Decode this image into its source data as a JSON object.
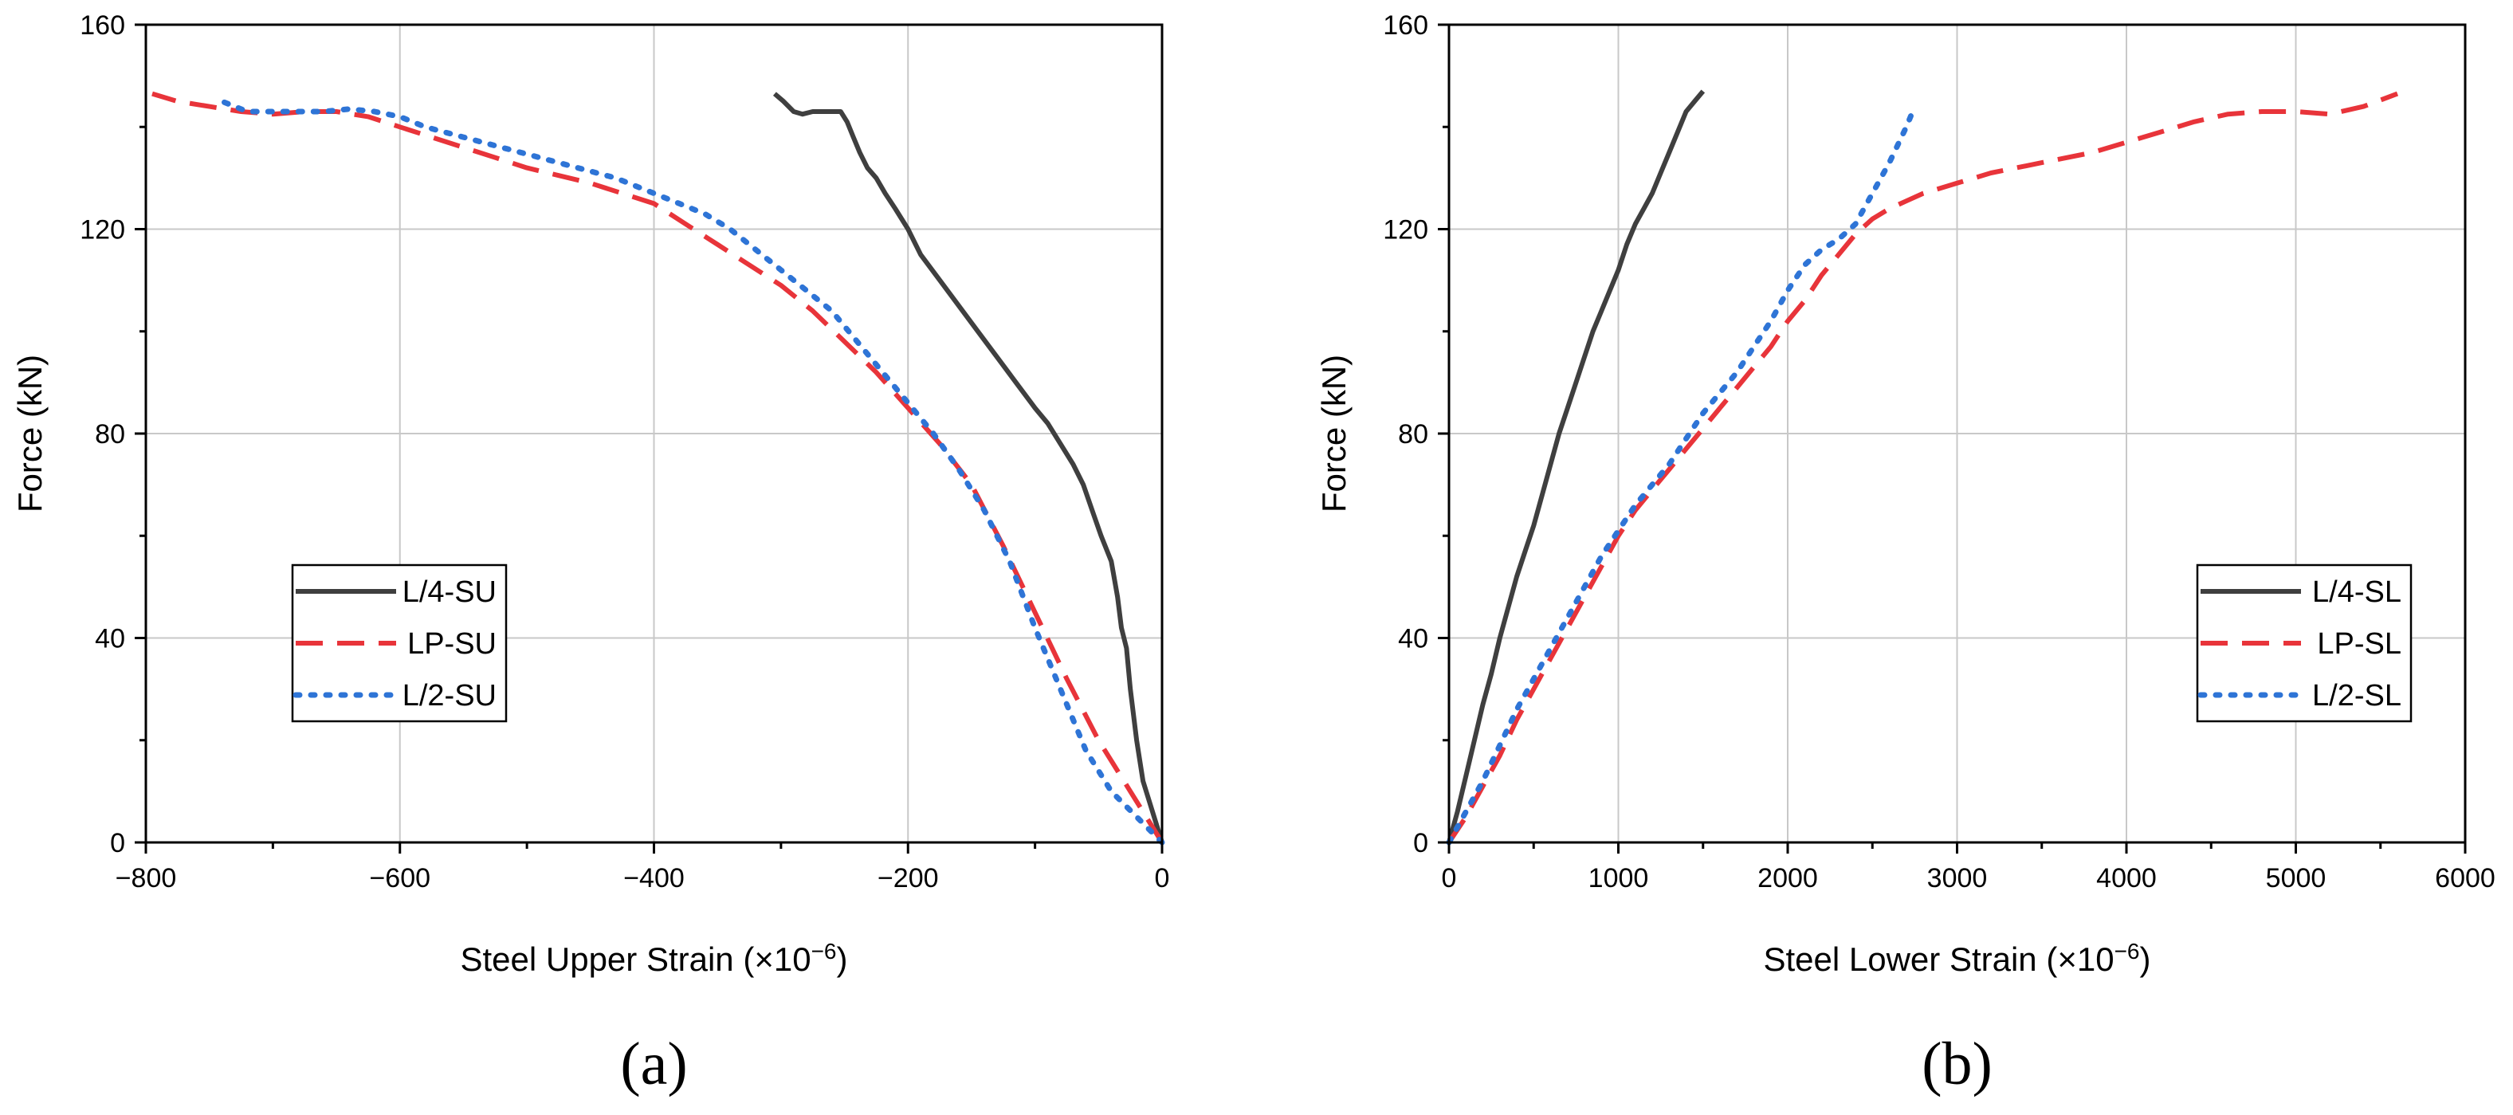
{
  "chart_data": [
    {
      "type": "line",
      "panel_label": "(a)",
      "xlabel": "Steel Upper Strain (×10",
      "xlabel_exp": "−6",
      "xlabel_close": ")",
      "ylabel": "Force (kN)",
      "xlim": [
        -800,
        0
      ],
      "ylim": [
        0,
        160
      ],
      "xticks": [
        -800,
        -600,
        -400,
        -200,
        0
      ],
      "xtick_labels": [
        "−800",
        "−600",
        "−400",
        "−200",
        "0"
      ],
      "yticks": [
        0,
        40,
        80,
        120,
        160
      ],
      "ytick_labels": [
        "0",
        "40",
        "80",
        "120",
        "160"
      ],
      "grid": true,
      "legend_position": "lower-left",
      "series": [
        {
          "name": "L/4-SU",
          "color": "#3f3f3f",
          "style": "solid",
          "x": [
            0,
            -5,
            -10,
            -15,
            -20,
            -25,
            -28,
            -32,
            -35,
            -40,
            -48,
            -55,
            -62,
            -70,
            -80,
            -90,
            -100,
            -115,
            -130,
            -145,
            -160,
            -175,
            -190,
            -200,
            -210,
            -218,
            -225,
            -232,
            -238,
            -243,
            -248,
            -253,
            -257,
            -262,
            -268,
            -275,
            -283,
            -290,
            -298,
            -305
          ],
          "y": [
            0,
            4,
            8,
            12,
            20,
            30,
            38,
            42,
            48,
            55,
            60,
            65,
            70,
            74,
            78,
            82,
            85,
            90,
            95,
            100,
            105,
            110,
            115,
            120,
            124,
            127,
            130,
            132,
            135,
            138,
            141,
            143,
            143,
            143,
            143,
            143,
            142.5,
            143,
            145,
            146.5
          ]
        },
        {
          "name": "LP-SU",
          "color": "#e8343a",
          "style": "dashed",
          "x": [
            0,
            -25,
            -50,
            -75,
            -100,
            -125,
            -150,
            -175,
            -200,
            -225,
            -250,
            -275,
            -300,
            -325,
            -350,
            -375,
            -400,
            -425,
            -450,
            -475,
            -500,
            -525,
            -550,
            -575,
            -600,
            -625,
            -650,
            -675,
            -700,
            -725,
            -750,
            -775,
            -795
          ],
          "y": [
            0,
            10,
            20,
            32,
            45,
            58,
            70,
            78,
            85,
            92,
            98,
            104,
            109,
            113,
            117,
            121,
            125,
            127,
            129,
            130.5,
            132,
            134,
            136,
            138,
            140,
            142,
            143,
            143,
            142.5,
            143,
            144,
            145,
            146.5
          ]
        },
        {
          "name": "L/2-SU",
          "color": "#2e74d6",
          "style": "dotted",
          "x": [
            0,
            -20,
            -40,
            -60,
            -80,
            -100,
            -120,
            -140,
            -160,
            -180,
            -200,
            -220,
            -240,
            -260,
            -280,
            -300,
            -320,
            -340,
            -360,
            -380,
            -400,
            -430,
            -460,
            -490,
            -520,
            -550,
            -580,
            -600,
            -620,
            -640,
            -660,
            -680,
            -700,
            -720,
            -740
          ],
          "y": [
            0,
            5,
            10,
            18,
            30,
            42,
            55,
            65,
            73,
            80,
            86,
            92,
            98,
            104,
            108,
            112,
            116,
            120,
            123,
            125,
            127,
            130,
            132,
            134,
            136,
            138,
            140,
            142,
            143,
            143.5,
            143,
            143,
            143,
            143,
            145
          ]
        }
      ]
    },
    {
      "type": "line",
      "panel_label": "(b)",
      "xlabel": "Steel Lower Strain (×10",
      "xlabel_exp": "−6",
      "xlabel_close": ")",
      "ylabel": "Force (kN)",
      "xlim": [
        0,
        6000
      ],
      "ylim": [
        0,
        160
      ],
      "xticks": [
        0,
        1000,
        2000,
        3000,
        4000,
        5000,
        6000
      ],
      "xtick_labels": [
        "0",
        "1000",
        "2000",
        "3000",
        "4000",
        "5000",
        "6000"
      ],
      "yticks": [
        0,
        40,
        80,
        120,
        160
      ],
      "ytick_labels": [
        "0",
        "40",
        "80",
        "120",
        "160"
      ],
      "grid": true,
      "legend_position": "lower-right",
      "series": [
        {
          "name": "L/4-SL",
          "color": "#3f3f3f",
          "style": "solid",
          "x": [
            0,
            50,
            100,
            150,
            200,
            250,
            300,
            350,
            400,
            450,
            500,
            550,
            600,
            650,
            700,
            750,
            800,
            850,
            900,
            950,
            1000,
            1050,
            1100,
            1150,
            1200,
            1250,
            1300,
            1350,
            1400,
            1450,
            1500
          ],
          "y": [
            0,
            6,
            13,
            20,
            27,
            33,
            40,
            46,
            52,
            57,
            62,
            68,
            74,
            80,
            85,
            90,
            95,
            100,
            104,
            108,
            112,
            117,
            121,
            124,
            127,
            131,
            135,
            139,
            143,
            145,
            147
          ]
        },
        {
          "name": "LP-SL",
          "color": "#e8343a",
          "style": "dashed",
          "x": [
            0,
            100,
            200,
            300,
            400,
            500,
            600,
            700,
            800,
            900,
            1000,
            1100,
            1200,
            1300,
            1400,
            1500,
            1600,
            1700,
            1800,
            1900,
            2000,
            2100,
            2200,
            2300,
            2400,
            2500,
            2600,
            2700,
            2800,
            3000,
            3200,
            3500,
            3800,
            4000,
            4200,
            4400,
            4600,
            4800,
            5000,
            5200,
            5400,
            5600
          ],
          "y": [
            0,
            5,
            11,
            17,
            24,
            30,
            36,
            42,
            48,
            54,
            60,
            65,
            69,
            73,
            77,
            81,
            85,
            89,
            93,
            97,
            102,
            106,
            111,
            115,
            119,
            122,
            124,
            125.5,
            127,
            129,
            131,
            133,
            135,
            137,
            139,
            141,
            142.5,
            143,
            143,
            142.5,
            144,
            146.5
          ]
        },
        {
          "name": "L/2-SL",
          "color": "#2e74d6",
          "style": "dotted",
          "x": [
            0,
            100,
            200,
            300,
            400,
            500,
            600,
            700,
            800,
            900,
            1000,
            1100,
            1200,
            1300,
            1400,
            1500,
            1600,
            1700,
            1800,
            1900,
            2000,
            2100,
            2200,
            2300,
            2400,
            2500,
            2600,
            2700,
            2750
          ],
          "y": [
            0,
            6,
            12,
            19,
            26,
            32,
            38,
            44,
            50,
            56,
            61,
            66,
            70,
            74,
            79,
            84,
            88,
            92,
            97,
            102,
            108,
            113,
            116,
            118,
            121,
            127,
            133,
            140,
            144
          ]
        }
      ]
    }
  ]
}
